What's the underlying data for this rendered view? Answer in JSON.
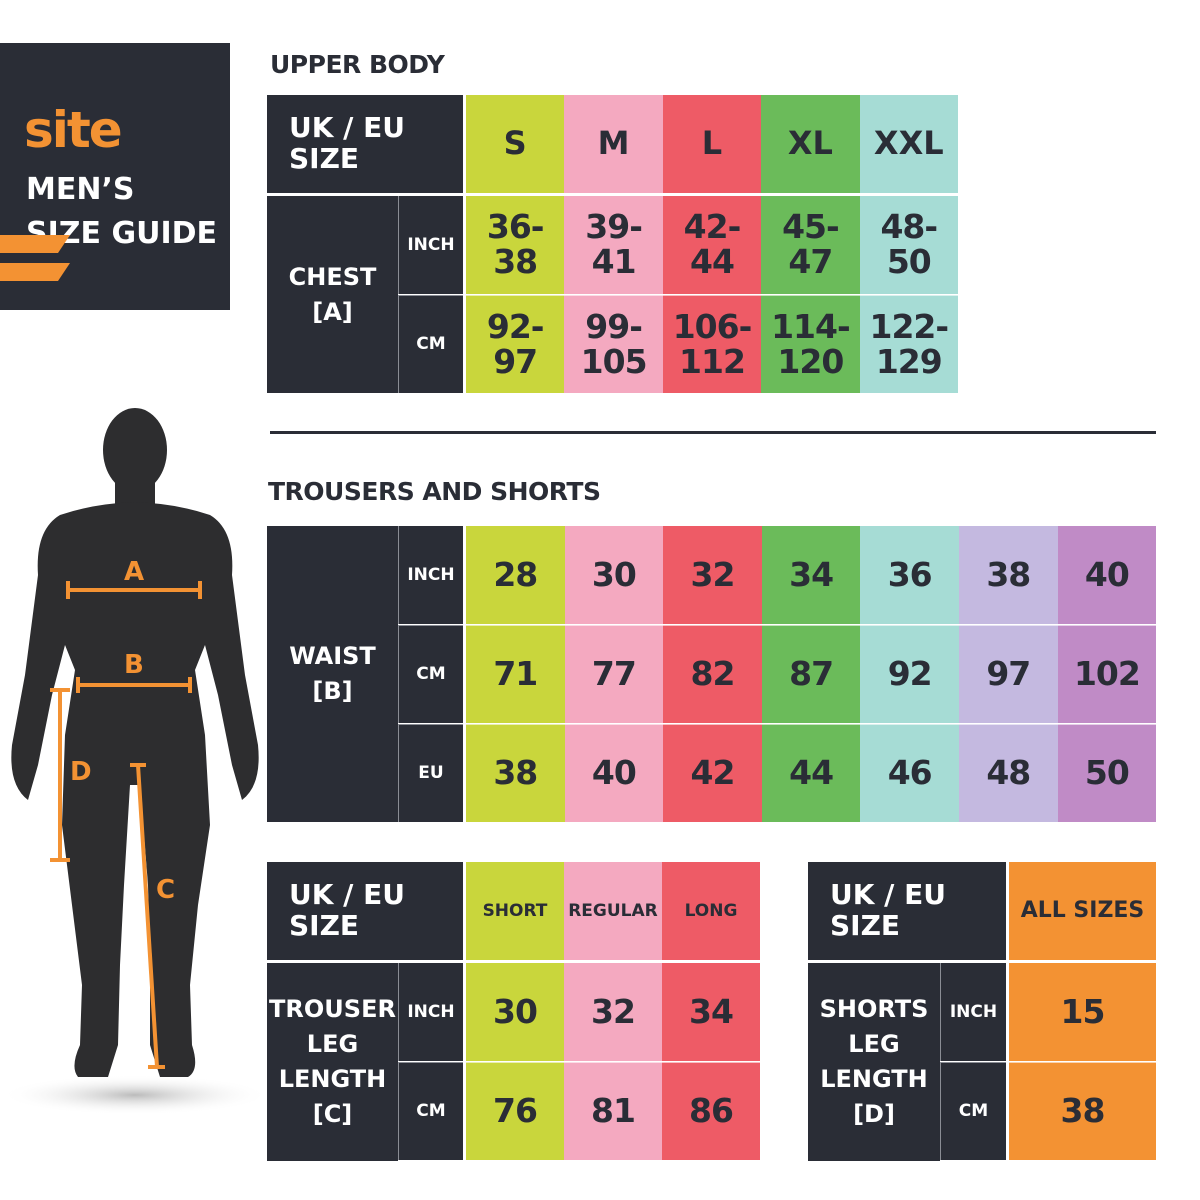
{
  "logo": {
    "brand": "site",
    "title_line1": "MEN’S",
    "title_line2": "SIZE GUIDE"
  },
  "colors": {
    "dark": "#2a2d36",
    "orange": "#f39233",
    "S": "#c9d63c",
    "M": "#f4a9c0",
    "L": "#ee5b66",
    "XL": "#6bbb5a",
    "XXL": "#a6dcd5",
    "38": "#c4b9e0",
    "40": "#c08bc6"
  },
  "figure": {
    "labels": [
      "A",
      "B",
      "C",
      "D"
    ]
  },
  "upper_body": {
    "title": "UPPER BODY",
    "size_header": "UK / EU SIZE",
    "sizes": [
      "S",
      "M",
      "L",
      "XL",
      "XXL"
    ],
    "chest_label": "CHEST [A]",
    "units": [
      "INCH",
      "CM"
    ],
    "rows": [
      [
        "36-\n38",
        "39-\n41",
        "42-\n44",
        "45-\n47",
        "48-\n50"
      ],
      [
        "92-\n97",
        "99-\n105",
        "106-\n112",
        "114-\n120",
        "122-\n129"
      ]
    ]
  },
  "trousers": {
    "title": "TROUSERS AND SHORTS",
    "waist_label": "WAIST [B]",
    "units": [
      "INCH",
      "CM",
      "EU"
    ],
    "rows": [
      [
        "28",
        "30",
        "32",
        "34",
        "36",
        "38",
        "40"
      ],
      [
        "71",
        "77",
        "82",
        "87",
        "92",
        "97",
        "102"
      ],
      [
        "38",
        "40",
        "42",
        "44",
        "46",
        "48",
        "50"
      ]
    ]
  },
  "trouser_leg": {
    "size_header": "UK / EU SIZE",
    "lengths": [
      "SHORT",
      "REGULAR",
      "LONG"
    ],
    "label": "TROUSER LEG LENGTH [C]",
    "units": [
      "INCH",
      "CM"
    ],
    "rows": [
      [
        "30",
        "32",
        "34"
      ],
      [
        "76",
        "81",
        "86"
      ]
    ]
  },
  "shorts_leg": {
    "size_header": "UK / EU SIZE",
    "column": "ALL SIZES",
    "label": "SHORTS LEG LENGTH [D]",
    "units": [
      "INCH",
      "CM"
    ],
    "rows": [
      [
        "15"
      ],
      [
        "38"
      ]
    ]
  }
}
